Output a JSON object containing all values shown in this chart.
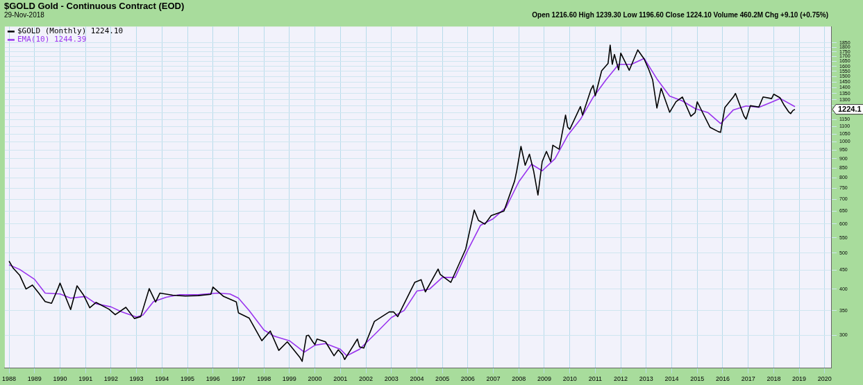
{
  "chart_data": {
    "type": "line",
    "title": "$GOLD Gold - Continuous Contract (EOD)",
    "subtitle": "29-Nov-2018",
    "annotations": [
      "Open 1216.60 High 1239.30 Low 1196.60 Close 1224.10 Volume 460.2M Chg +9.10 (+0.75%)",
      "1224.1"
    ],
    "log": "y",
    "grid": true,
    "legend": "top left",
    "marker": "none",
    "line_style": "solid",
    "xlim": [
      "1987-11",
      "2020-04"
    ],
    "xticks": [
      "1988",
      "1989",
      "1990",
      "1991",
      "1992",
      "1993",
      "1994",
      "1995",
      "1996",
      "1997",
      "1998",
      "1999",
      "2000",
      "2001",
      "2002",
      "2003",
      "2004",
      "2005",
      "2006",
      "2007",
      "2008",
      "2009",
      "2010",
      "2011",
      "2012",
      "2013",
      "2014",
      "2015",
      "2016",
      "2017",
      "2018",
      "2019",
      "2020"
    ],
    "ylim": [
      245,
      2050
    ],
    "yticks": [
      300,
      350,
      400,
      450,
      500,
      550,
      600,
      650,
      700,
      750,
      800,
      850,
      900,
      950,
      1000,
      1050,
      1100,
      1150,
      {
        "value": 1200,
        "label": null
      },
      {
        "value": 1250,
        "label": null
      },
      1300,
      1350,
      1400,
      1450,
      1500,
      1550,
      1600,
      1650,
      1700,
      1750,
      1800,
      1850
    ],
    "series": [
      {
        "name": "$GOLD (Monthly) 1224.10",
        "color": "#000000",
        "x": [
          "1988-01",
          "1988-03",
          "1988-06",
          "1988-09",
          "1988-12",
          "1989-03",
          "1989-06",
          "1989-09",
          "1989-12",
          "1990-01",
          "1990-06",
          "1990-09",
          "1990-12",
          "1991-03",
          "1991-06",
          "1991-12",
          "1992-03",
          "1992-08",
          "1992-12",
          "1993-03",
          "1993-07",
          "1993-10",
          "1993-12",
          "1994-06",
          "1994-12",
          "1995-06",
          "1995-12",
          "1996-01",
          "1996-06",
          "1996-12",
          "1997-01",
          "1997-06",
          "1997-12",
          "1998-04",
          "1998-08",
          "1998-12",
          "1999-06",
          "1999-07",
          "1999-09",
          "1999-10",
          "1999-12",
          "2000-01",
          "2000-02",
          "2000-06",
          "2000-10",
          "2000-12",
          "2001-02",
          "2001-03",
          "2001-09",
          "2001-10",
          "2001-12",
          "2002-05",
          "2002-12",
          "2003-02",
          "2003-04",
          "2003-12",
          "2004-03",
          "2004-05",
          "2004-11",
          "2004-12",
          "2005-05",
          "2005-12",
          "2006-04",
          "2006-06",
          "2006-09",
          "2006-12",
          "2007-06",
          "2007-11",
          "2007-12",
          "2008-02",
          "2008-03",
          "2008-04",
          "2008-06",
          "2008-08",
          "2008-10",
          "2008-12",
          "2009-02",
          "2009-04",
          "2009-05",
          "2009-08",
          "2009-11",
          "2009-12",
          "2010-01",
          "2010-06",
          "2010-07",
          "2010-11",
          "2010-12",
          "2011-01",
          "2011-04",
          "2011-07",
          "2011-08",
          "2011-09",
          "2011-10",
          "2011-12",
          "2012-01",
          "2012-05",
          "2012-09",
          "2012-12",
          "2013-02",
          "2013-04",
          "2013-06",
          "2013-08",
          "2013-12",
          "2014-03",
          "2014-06",
          "2014-10",
          "2014-12",
          "2015-01",
          "2015-07",
          "2015-11",
          "2015-12",
          "2016-02",
          "2016-06",
          "2016-07",
          "2016-11",
          "2016-12",
          "2017-02",
          "2017-06",
          "2017-08",
          "2017-12",
          "2018-01",
          "2018-04",
          "2018-06",
          "2018-08",
          "2018-09",
          "2018-10",
          "2018-11"
        ],
        "values": [
          476,
          455,
          436,
          400,
          410,
          390,
          370,
          366,
          401,
          415,
          352,
          408,
          386,
          356,
          368,
          353,
          341,
          357,
          333,
          337,
          401,
          369,
          390,
          385,
          383,
          384,
          387,
          405,
          382,
          369,
          345,
          334,
          290,
          308,
          273,
          288,
          261,
          255,
          299,
          300,
          288,
          283,
          293,
          288,
          264,
          274,
          266,
          258,
          293,
          279,
          277,
          327,
          347,
          347,
          337,
          417,
          424,
          393,
          453,
          438,
          417,
          513,
          654,
          613,
          599,
          632,
          650,
          783,
          834,
          972,
          917,
          864,
          926,
          833,
          718,
          884,
          942,
          884,
          979,
          955,
          1181,
          1096,
          1081,
          1245,
          1181,
          1386,
          1421,
          1332,
          1556,
          1628,
          1825,
          1620,
          1722,
          1565,
          1737,
          1561,
          1772,
          1675,
          1578,
          1472,
          1234,
          1396,
          1202,
          1284,
          1322,
          1172,
          1199,
          1283,
          1095,
          1065,
          1061,
          1238,
          1322,
          1351,
          1174,
          1152,
          1252,
          1242,
          1322,
          1309,
          1345,
          1315,
          1254,
          1206,
          1192,
          1215,
          1224.1
        ]
      },
      {
        "name": "EMA(10) 1244.39",
        "color": "#9933ee",
        "x": [
          "1988-01",
          "1988-06",
          "1989-01",
          "1989-06",
          "1990-01",
          "1990-06",
          "1991-01",
          "1991-06",
          "1992-01",
          "1992-06",
          "1993-01",
          "1993-04",
          "1993-09",
          "1994-03",
          "1994-09",
          "1995-06",
          "1996-03",
          "1996-09",
          "1997-01",
          "1997-06",
          "1998-01",
          "1998-06",
          "1999-01",
          "1999-08",
          "2000-01",
          "2000-06",
          "2001-01",
          "2001-04",
          "2001-10",
          "2002-06",
          "2003-01",
          "2003-07",
          "2004-01",
          "2004-07",
          "2005-01",
          "2005-07",
          "2006-01",
          "2006-07",
          "2007-01",
          "2007-07",
          "2008-01",
          "2008-07",
          "2008-12",
          "2009-06",
          "2009-12",
          "2010-06",
          "2010-12",
          "2011-06",
          "2011-12",
          "2012-06",
          "2012-12",
          "2013-06",
          "2013-12",
          "2014-06",
          "2014-12",
          "2015-06",
          "2015-12",
          "2016-06",
          "2016-12",
          "2017-06",
          "2017-12",
          "2018-04",
          "2018-11"
        ],
        "values": [
          465,
          452,
          425,
          390,
          388,
          378,
          382,
          365,
          358,
          347,
          336,
          340,
          370,
          380,
          386,
          386,
          390,
          388,
          378,
          350,
          310,
          298,
          290,
          270,
          282,
          285,
          275,
          264,
          275,
          305,
          335,
          350,
          395,
          400,
          430,
          430,
          510,
          595,
          620,
          665,
          780,
          870,
          835,
          900,
          1040,
          1150,
          1320,
          1470,
          1620,
          1620,
          1680,
          1480,
          1330,
          1290,
          1230,
          1200,
          1120,
          1220,
          1250,
          1240,
          1280,
          1310,
          1244.39
        ]
      }
    ]
  }
}
